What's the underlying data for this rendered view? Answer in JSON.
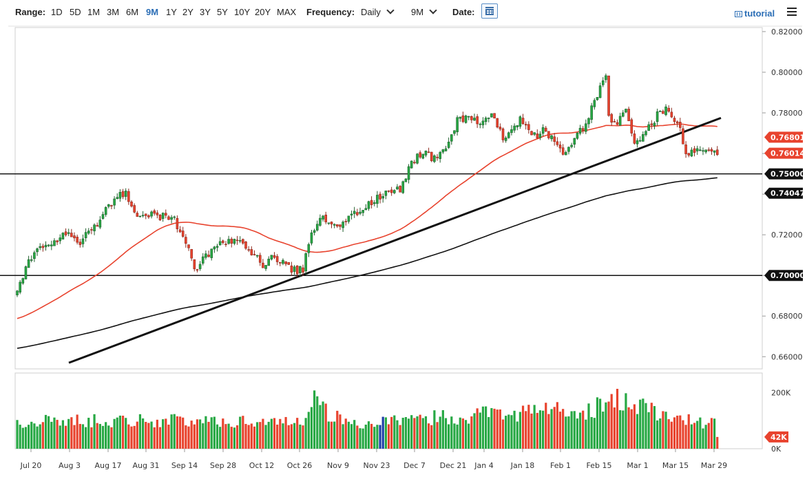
{
  "toolbar": {
    "range_label": "Range:",
    "ranges": [
      "1D",
      "5D",
      "1M",
      "3M",
      "6M",
      "9M",
      "1Y",
      "2Y",
      "3Y",
      "5Y",
      "10Y",
      "20Y",
      "MAX"
    ],
    "active_range": "9M",
    "frequency_label": "Frequency:",
    "frequency_value": "Daily",
    "period_value": "9M",
    "date_label": "Date:",
    "tutorial_label": "tutorial"
  },
  "chart_data": {
    "type": "candlestick",
    "x_tick_labels": [
      "Jul 20",
      "Aug 3",
      "Aug 17",
      "Aug 31",
      "Sep 14",
      "Sep 28",
      "Oct 12",
      "Oct 26",
      "Nov 9",
      "Nov 23",
      "Dec 7",
      "Dec 21",
      "Jan 4",
      "Jan 18",
      "Feb 1",
      "Feb 15",
      "Mar 1",
      "Mar 15",
      "Mar 29"
    ],
    "y_price_range": [
      0.654,
      0.822
    ],
    "y_price_ticks": [
      "0.82000",
      "0.80000",
      "0.78000",
      "0.76000",
      "0.74000",
      "0.72000",
      "0.70000",
      "0.68000",
      "0.66000"
    ],
    "price_badges": [
      {
        "label": "0.76801",
        "value": 0.76801,
        "color": "#e8432e"
      },
      {
        "label": "0.76014",
        "value": 0.76014,
        "color": "#e8432e"
      },
      {
        "label": "0.75000",
        "value": 0.75,
        "color": "#111111"
      },
      {
        "label": "0.74047",
        "value": 0.74047,
        "color": "#111111"
      },
      {
        "label": "0.70000",
        "value": 0.7,
        "color": "#111111"
      }
    ],
    "horizontal_lines": [
      0.75,
      0.7
    ],
    "trendline": {
      "from": [
        "Jul 20",
        0.657
      ],
      "to": [
        "Mar 29",
        0.7775
      ]
    },
    "moving_average_fast_color": "#e8432e",
    "moving_average_slow_color": "#111111",
    "volume_range": [
      0,
      270000
    ],
    "volume_ticks": [
      "200K",
      "0K"
    ],
    "volume_badge": "42K",
    "volume_badge_value": 42000,
    "up_color": "#27a844",
    "down_color": "#e8432e",
    "anchors": [
      [
        0,
        0.694
      ],
      [
        6,
        0.712
      ],
      [
        12,
        0.714
      ],
      [
        16,
        0.722
      ],
      [
        22,
        0.716
      ],
      [
        28,
        0.726
      ],
      [
        34,
        0.738
      ],
      [
        38,
        0.74
      ],
      [
        42,
        0.728
      ],
      [
        48,
        0.73
      ],
      [
        55,
        0.727
      ],
      [
        60,
        0.713
      ],
      [
        62,
        0.702
      ],
      [
        66,
        0.71
      ],
      [
        72,
        0.716
      ],
      [
        78,
        0.719
      ],
      [
        82,
        0.711
      ],
      [
        86,
        0.705
      ],
      [
        90,
        0.71
      ],
      [
        94,
        0.704
      ],
      [
        98,
        0.702
      ],
      [
        100,
        0.703
      ],
      [
        103,
        0.722
      ],
      [
        106,
        0.728
      ],
      [
        112,
        0.725
      ],
      [
        118,
        0.73
      ],
      [
        124,
        0.736
      ],
      [
        130,
        0.741
      ],
      [
        134,
        0.742
      ],
      [
        138,
        0.756
      ],
      [
        142,
        0.761
      ],
      [
        146,
        0.757
      ],
      [
        150,
        0.763
      ],
      [
        154,
        0.776
      ],
      [
        158,
        0.779
      ],
      [
        162,
        0.774
      ],
      [
        166,
        0.778
      ],
      [
        170,
        0.768
      ],
      [
        176,
        0.777
      ],
      [
        180,
        0.768
      ],
      [
        184,
        0.771
      ],
      [
        188,
        0.766
      ],
      [
        192,
        0.76
      ],
      [
        196,
        0.769
      ],
      [
        200,
        0.777
      ],
      [
        202,
        0.787
      ],
      [
        205,
        0.794
      ],
      [
        206,
        0.797
      ],
      [
        207,
        0.778
      ],
      [
        210,
        0.775
      ],
      [
        213,
        0.78
      ],
      [
        216,
        0.766
      ],
      [
        220,
        0.77
      ],
      [
        224,
        0.779
      ],
      [
        227,
        0.781
      ],
      [
        230,
        0.776
      ],
      [
        232,
        0.774
      ],
      [
        234,
        0.758
      ],
      [
        236,
        0.762
      ],
      [
        239,
        0.76
      ],
      [
        242,
        0.762
      ],
      [
        244,
        0.76
      ]
    ],
    "volume_profile": [
      [
        0,
        95000
      ],
      [
        20,
        100000
      ],
      [
        40,
        102000
      ],
      [
        60,
        98000
      ],
      [
        80,
        97000
      ],
      [
        100,
        102000
      ],
      [
        103,
        190000
      ],
      [
        110,
        115000
      ],
      [
        120,
        88000
      ],
      [
        140,
        102000
      ],
      [
        150,
        116000
      ],
      [
        160,
        112000
      ],
      [
        165,
        148000
      ],
      [
        175,
        125000
      ],
      [
        185,
        148000
      ],
      [
        195,
        118000
      ],
      [
        205,
        155000
      ],
      [
        212,
        178000
      ],
      [
        218,
        160000
      ],
      [
        225,
        120000
      ],
      [
        230,
        110000
      ],
      [
        236,
        98000
      ],
      [
        244,
        92000
      ]
    ]
  }
}
